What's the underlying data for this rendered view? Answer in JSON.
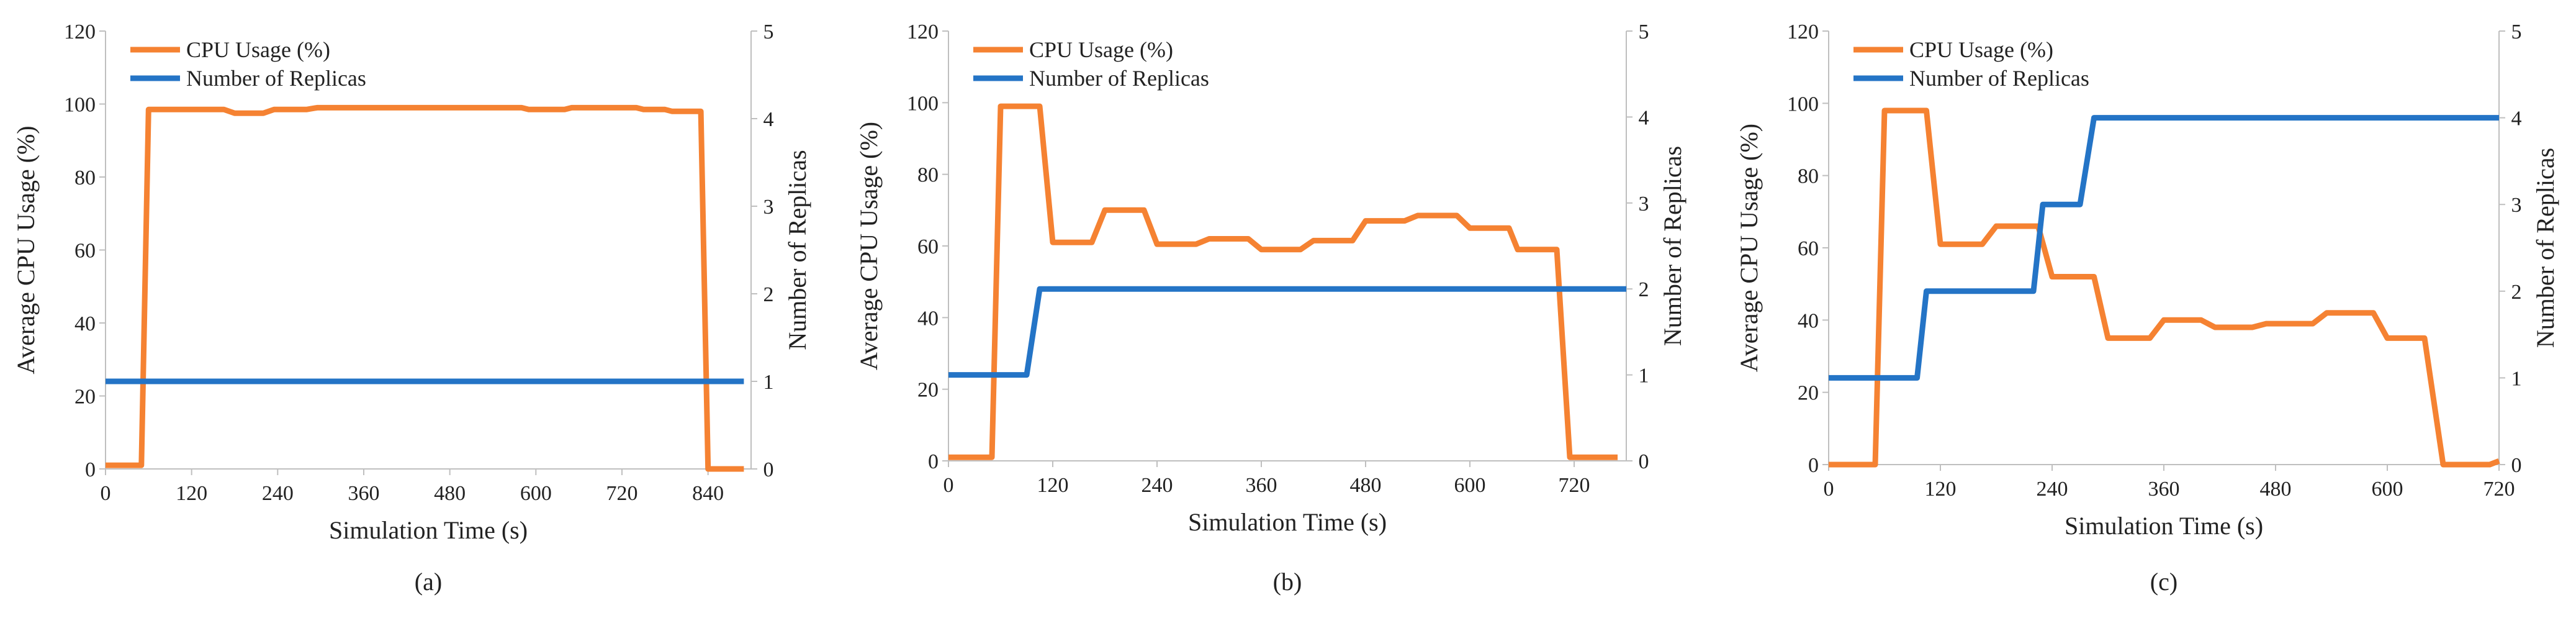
{
  "colors": {
    "cpu": "#F58232",
    "replicas": "#2474C6",
    "axis": "#BFBFBF",
    "text": "#222222"
  },
  "chart_data": [
    {
      "type": "line",
      "caption": "(a)",
      "xlabel": "Simulation Time (s)",
      "ylabel": "Average CPU Usage (%)",
      "y2label": "Number of Replicas",
      "xlim": [
        0,
        900
      ],
      "xticks": [
        "0",
        "120",
        "240",
        "360",
        "480",
        "600",
        "720",
        "840"
      ],
      "ylim": [
        0,
        120
      ],
      "yticks": [
        "0",
        "20",
        "40",
        "60",
        "80",
        "100",
        "120"
      ],
      "y2lim": [
        0,
        5
      ],
      "y2ticks": [
        "0",
        "1",
        "2",
        "3",
        "4",
        "5"
      ],
      "legend": [
        "CPU Usage (%)",
        "Number of Replicas"
      ],
      "series": [
        {
          "name": "CPU Usage (%)",
          "axis": "left",
          "color": "#F58232",
          "points": [
            [
              0,
              1
            ],
            [
              50,
              1
            ],
            [
              60,
              98.5
            ],
            [
              165,
              98.5
            ],
            [
              180,
              97.5
            ],
            [
              220,
              97.5
            ],
            [
              235,
              98.5
            ],
            [
              280,
              98.5
            ],
            [
              295,
              99
            ],
            [
              580,
              99
            ],
            [
              590,
              98.5
            ],
            [
              640,
              98.5
            ],
            [
              650,
              99
            ],
            [
              740,
              99
            ],
            [
              750,
              98.5
            ],
            [
              780,
              98.5
            ],
            [
              790,
              98
            ],
            [
              830,
              98
            ],
            [
              840,
              0
            ],
            [
              890,
              0
            ]
          ]
        },
        {
          "name": "Number of Replicas",
          "axis": "right",
          "color": "#2474C6",
          "points": [
            [
              0,
              1
            ],
            [
              890,
              1
            ]
          ]
        }
      ]
    },
    {
      "type": "line",
      "caption": "(b)",
      "xlabel": "Simulation Time (s)",
      "ylabel": "Average CPU Usage (%)",
      "y2label": "Number of Replicas",
      "xlim": [
        0,
        780
      ],
      "xticks": [
        "0",
        "120",
        "240",
        "360",
        "480",
        "600",
        "720"
      ],
      "ylim": [
        0,
        120
      ],
      "yticks": [
        "0",
        "20",
        "40",
        "60",
        "80",
        "100",
        "120"
      ],
      "y2lim": [
        0,
        5
      ],
      "y2ticks": [
        "0",
        "1",
        "2",
        "3",
        "4",
        "5"
      ],
      "legend": [
        "CPU Usage (%)",
        "Number of Replicas"
      ],
      "series": [
        {
          "name": "CPU Usage (%)",
          "axis": "left",
          "color": "#F58232",
          "points": [
            [
              0,
              1
            ],
            [
              50,
              1
            ],
            [
              60,
              99
            ],
            [
              105,
              99
            ],
            [
              120,
              61
            ],
            [
              165,
              61
            ],
            [
              180,
              70
            ],
            [
              225,
              70
            ],
            [
              240,
              60.5
            ],
            [
              285,
              60.5
            ],
            [
              300,
              62
            ],
            [
              345,
              62
            ],
            [
              360,
              59
            ],
            [
              405,
              59
            ],
            [
              420,
              61.5
            ],
            [
              465,
              61.5
            ],
            [
              480,
              67
            ],
            [
              525,
              67
            ],
            [
              540,
              68.5
            ],
            [
              585,
              68.5
            ],
            [
              600,
              65
            ],
            [
              645,
              65
            ],
            [
              655,
              59
            ],
            [
              700,
              59
            ],
            [
              715,
              1
            ],
            [
              770,
              1
            ]
          ]
        },
        {
          "name": "Number of Replicas",
          "axis": "right",
          "color": "#2474C6",
          "points": [
            [
              0,
              1
            ],
            [
              90,
              1
            ],
            [
              105,
              2
            ],
            [
              780,
              2
            ]
          ]
        }
      ]
    },
    {
      "type": "line",
      "caption": "(c)",
      "xlabel": "Simulation Time (s)",
      "ylabel": "Average CPU Usage (%)",
      "y2label": "Number of Replicas",
      "xlim": [
        0,
        720
      ],
      "xticks": [
        "0",
        "120",
        "240",
        "360",
        "480",
        "600",
        "720"
      ],
      "ylim": [
        0,
        120
      ],
      "yticks": [
        "0",
        "20",
        "40",
        "60",
        "80",
        "100",
        "120"
      ],
      "y2lim": [
        0,
        5
      ],
      "y2ticks": [
        "0",
        "1",
        "2",
        "3",
        "4",
        "5"
      ],
      "legend": [
        "CPU Usage (%)",
        "Number of Replicas"
      ],
      "series": [
        {
          "name": "CPU Usage (%)",
          "axis": "left",
          "color": "#F58232",
          "points": [
            [
              0,
              0
            ],
            [
              50,
              0
            ],
            [
              60,
              98
            ],
            [
              105,
              98
            ],
            [
              120,
              61
            ],
            [
              165,
              61
            ],
            [
              180,
              66
            ],
            [
              225,
              66
            ],
            [
              240,
              52
            ],
            [
              285,
              52
            ],
            [
              300,
              35
            ],
            [
              345,
              35
            ],
            [
              360,
              40
            ],
            [
              400,
              40
            ],
            [
              415,
              38
            ],
            [
              455,
              38
            ],
            [
              470,
              39
            ],
            [
              520,
              39
            ],
            [
              535,
              42
            ],
            [
              585,
              42
            ],
            [
              600,
              35
            ],
            [
              640,
              35
            ],
            [
              660,
              0
            ],
            [
              710,
              0
            ],
            [
              720,
              1
            ]
          ]
        },
        {
          "name": "Number of Replicas",
          "axis": "right",
          "color": "#2474C6",
          "points": [
            [
              0,
              1
            ],
            [
              95,
              1
            ],
            [
              105,
              2
            ],
            [
              220,
              2
            ],
            [
              230,
              3
            ],
            [
              270,
              3
            ],
            [
              285,
              4
            ],
            [
              720,
              4
            ]
          ]
        }
      ]
    }
  ]
}
